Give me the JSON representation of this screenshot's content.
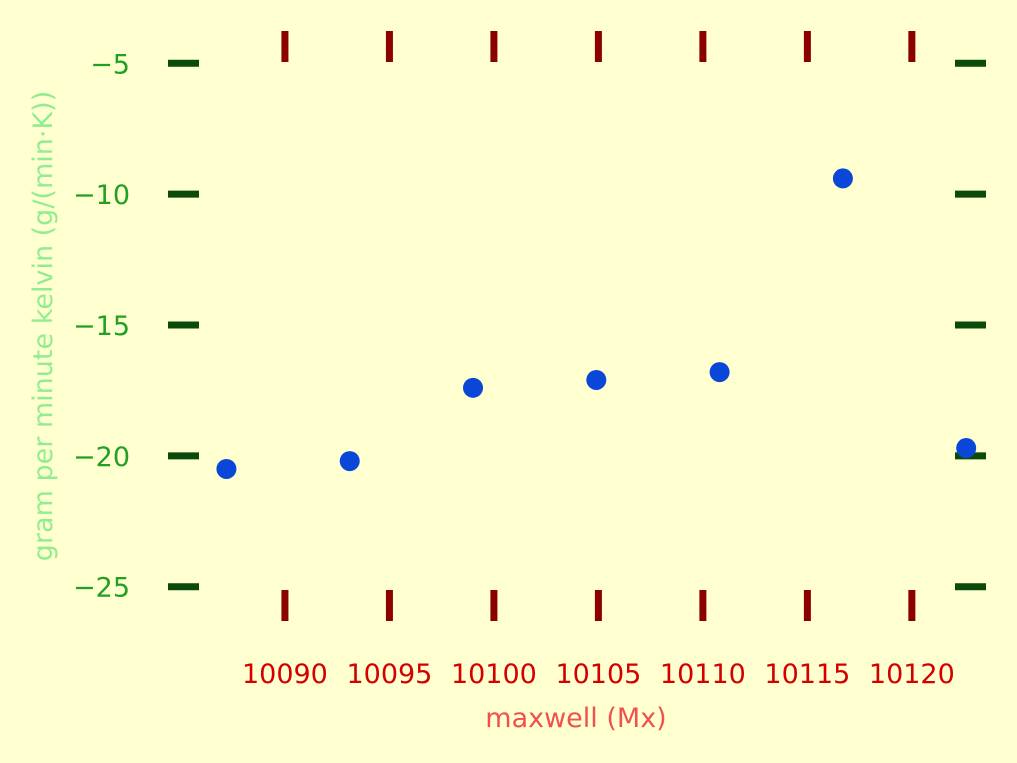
{
  "chart_data": {
    "type": "scatter",
    "title": "",
    "xlabel": "maxwell (Mx)",
    "ylabel": "gram per minute kelvin (g/(min·K))",
    "xlim": [
      10084.5,
      10123.5
    ],
    "ylim": [
      -26.5,
      -3.5
    ],
    "xticks": [
      10090,
      10095,
      10100,
      10105,
      10110,
      10115,
      10120
    ],
    "xtick_labels": [
      "10090",
      "10095",
      "10100",
      "10105",
      "10110",
      "10115",
      "10120"
    ],
    "yticks": [
      -5,
      -10,
      -15,
      -20,
      -25
    ],
    "ytick_labels": [
      "−5",
      "−10",
      "−15",
      "−20",
      "−25"
    ],
    "grid": false,
    "legend": "none",
    "series": [
      {
        "x": [
          10087.2,
          10093.1,
          10099.0,
          10104.9,
          10110.8,
          10116.7,
          10122.6
        ],
        "y": [
          -20.5,
          -20.2,
          -17.4,
          -17.1,
          -16.8,
          -9.4,
          -19.7
        ]
      }
    ],
    "colors": {
      "background": "#ffffd0",
      "point": "#0a46d8",
      "x_tick_mark": "#8b0000",
      "x_tick_label": "#d40000",
      "x_axis_title": "#f05050",
      "y_tick_mark": "#0a4a0a",
      "y_tick_label": "#22a022",
      "y_axis_title": "#90ee90"
    }
  }
}
